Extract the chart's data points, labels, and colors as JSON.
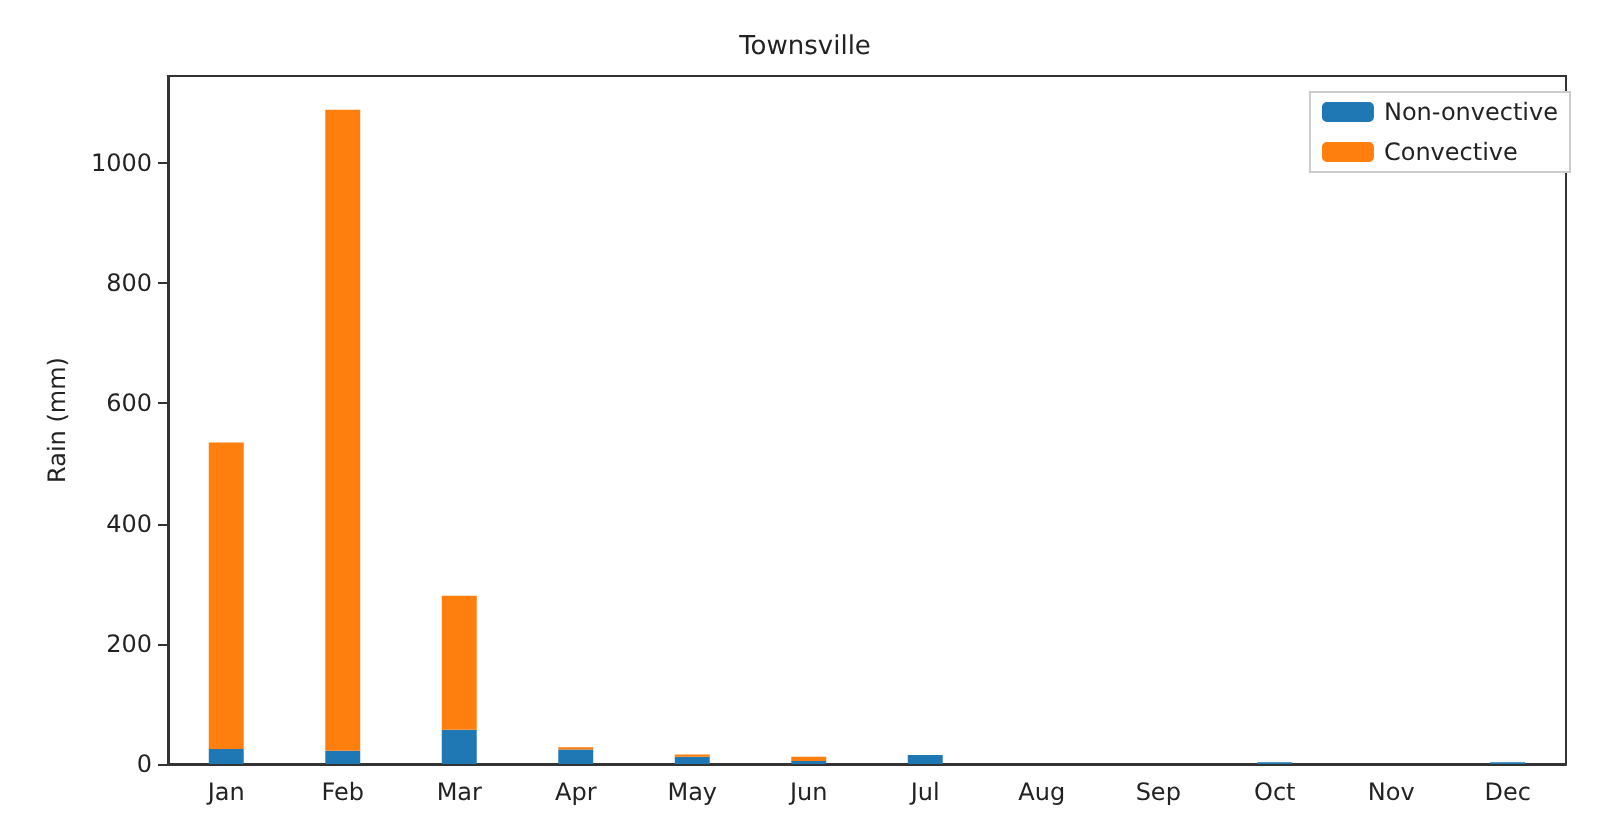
{
  "chart_data": {
    "type": "bar",
    "title": "Townsville",
    "ylabel": "Rain (mm)",
    "stacked": true,
    "categories": [
      "Jan",
      "Feb",
      "Mar",
      "Apr",
      "May",
      "Jun",
      "Jul",
      "Aug",
      "Sep",
      "Oct",
      "Nov",
      "Dec"
    ],
    "series": [
      {
        "name": "Non-onvective",
        "color": "#1f77b4",
        "values": [
          25,
          22,
          57,
          24,
          12,
          5,
          15,
          0,
          0,
          3,
          0,
          3
        ]
      },
      {
        "name": "Convective",
        "color": "#ff7f0e",
        "values": [
          510,
          1067,
          223,
          4,
          4,
          7,
          0,
          0,
          0,
          0,
          0,
          0
        ]
      }
    ],
    "ylim": [
      0,
      1145
    ],
    "yticks": [
      0,
      200,
      400,
      600,
      800,
      1000
    ],
    "grid": false,
    "legend": "top right"
  }
}
